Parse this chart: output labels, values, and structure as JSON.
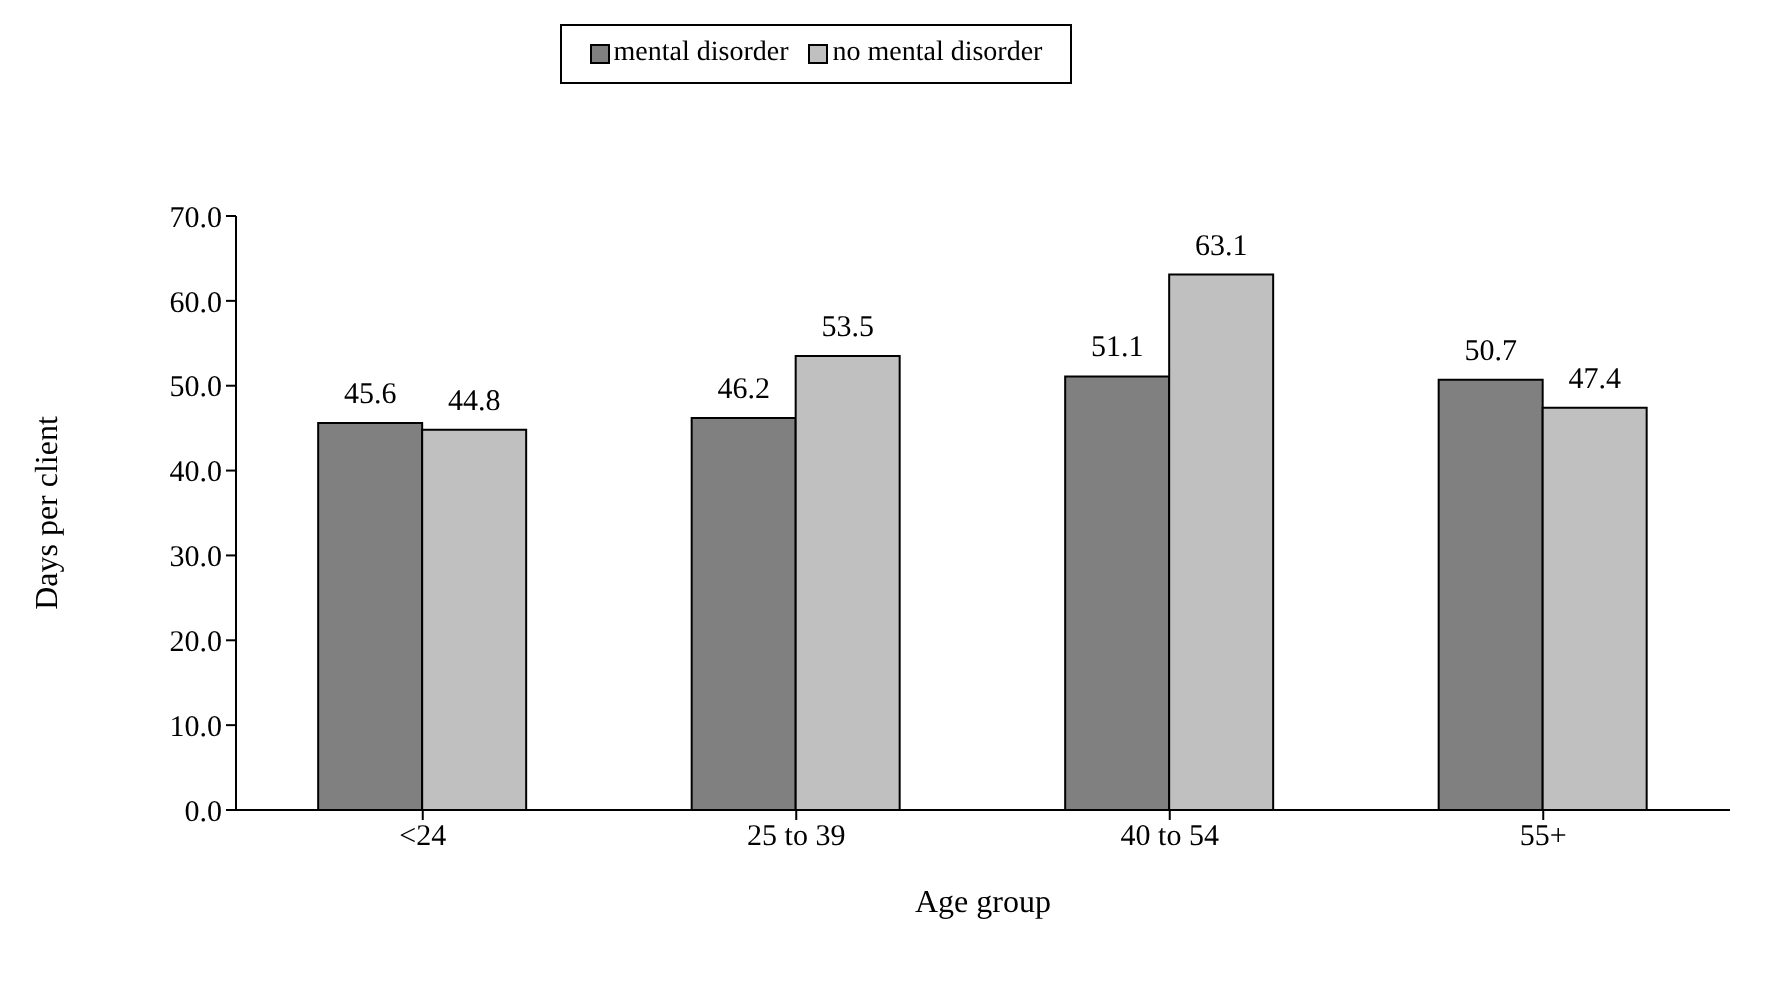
{
  "chart_data": {
    "type": "bar",
    "xlabel": "Age group",
    "ylabel": "Days per client",
    "categories": [
      "<24",
      "25 to 39",
      "40 to 54",
      "55+"
    ],
    "series": [
      {
        "name": "mental disorder",
        "color": "#808080",
        "values": [
          45.6,
          46.2,
          51.1,
          50.7
        ]
      },
      {
        "name": "no mental disorder",
        "color": "#c0c0c0",
        "values": [
          44.8,
          53.5,
          63.1,
          47.4
        ]
      }
    ],
    "ylim": [
      0,
      70
    ],
    "yticks": [
      {
        "value": 0,
        "label": "0.0"
      },
      {
        "value": 10,
        "label": "10.0"
      },
      {
        "value": 20,
        "label": "20.0"
      },
      {
        "value": 30,
        "label": "30.0"
      },
      {
        "value": 40,
        "label": "40.0"
      },
      {
        "value": 50,
        "label": "50.0"
      },
      {
        "value": 60,
        "label": "60.0"
      },
      {
        "value": 70,
        "label": "70.0"
      }
    ],
    "data_labels": true,
    "legend": "top",
    "grid": false
  }
}
